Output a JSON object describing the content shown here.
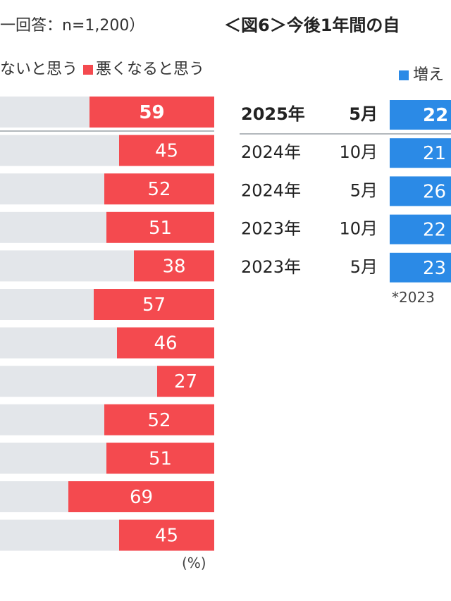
{
  "left_subtitle": "一回答：n=1,200）",
  "right_title": "＜図6＞今後1年間の自",
  "left_legend": {
    "other_label": "ないと思う",
    "worse_label": "悪くなると思う"
  },
  "right_legend": {
    "label": "増え"
  },
  "unit_label": "(%)",
  "right_footnote": "*2023",
  "colors": {
    "worse": "#f44a4f",
    "neutral": "#e3e6ea",
    "increase": "#2b8ae6"
  },
  "chart_data": [
    {
      "type": "bar",
      "orientation": "horizontal",
      "stacked": true,
      "series": [
        {
          "name": "悪くなると思う",
          "values": [
            59,
            45,
            52,
            51,
            38,
            57,
            46,
            27,
            52,
            51,
            69,
            45
          ],
          "labels": [
            "59",
            "45",
            "52",
            "51",
            "38",
            "57",
            "46",
            "27",
            "52",
            "51",
            "69",
            "45"
          ]
        }
      ],
      "unit": "(%)",
      "xlim": [
        0,
        100
      ]
    },
    {
      "type": "bar",
      "orientation": "horizontal",
      "stacked": true,
      "categories": [
        {
          "year": "2025年",
          "month": "5月"
        },
        {
          "year": "2024年",
          "month": "10月"
        },
        {
          "year": "2024年",
          "month": "5月"
        },
        {
          "year": "2023年",
          "month": "10月"
        },
        {
          "year": "2023年",
          "month": "5月"
        }
      ],
      "series": [
        {
          "name": "増え",
          "labels": [
            "22",
            "21",
            "26",
            "22",
            "23"
          ]
        }
      ]
    }
  ]
}
